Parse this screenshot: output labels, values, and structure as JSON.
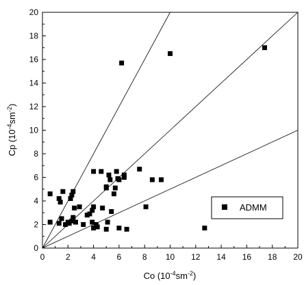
{
  "chart_data": {
    "type": "scatter",
    "xlabel": {
      "main": "Co (10",
      "sup1": "-4",
      "mid": "sm",
      "sup2": "-2",
      "end": ")"
    },
    "ylabel": {
      "main": "Cp (10",
      "sup1": "-4",
      "mid": "sm",
      "sup2": "-2",
      "end": ")"
    },
    "xlim": [
      0,
      20
    ],
    "ylim": [
      0,
      20
    ],
    "xticks": [
      0,
      2,
      4,
      6,
      8,
      10,
      12,
      14,
      16,
      18,
      20
    ],
    "yticks": [
      0,
      2,
      4,
      6,
      8,
      10,
      12,
      14,
      16,
      18,
      20
    ],
    "grid": false,
    "legend_position": "bottom-right",
    "series": [
      {
        "name": "ADMM",
        "marker": "square",
        "color": "#000000",
        "points": [
          [
            0.6,
            4.6
          ],
          [
            0.6,
            2.2
          ],
          [
            1.3,
            4.2
          ],
          [
            1.4,
            3.9
          ],
          [
            1.6,
            4.8
          ],
          [
            1.3,
            2.1
          ],
          [
            1.5,
            2.5
          ],
          [
            1.8,
            2.0
          ],
          [
            2.0,
            2.2
          ],
          [
            2.1,
            2.1
          ],
          [
            2.2,
            4.2
          ],
          [
            2.3,
            4.5
          ],
          [
            2.4,
            4.8
          ],
          [
            2.5,
            3.4
          ],
          [
            2.4,
            2.6
          ],
          [
            2.3,
            2.3
          ],
          [
            2.6,
            2.2
          ],
          [
            2.9,
            3.5
          ],
          [
            3.2,
            2.0
          ],
          [
            3.5,
            2.8
          ],
          [
            3.7,
            2.9
          ],
          [
            3.9,
            2.2
          ],
          [
            3.9,
            3.2
          ],
          [
            4.0,
            3.5
          ],
          [
            4.0,
            6.5
          ],
          [
            4.2,
            2.0
          ],
          [
            4.3,
            1.8
          ],
          [
            4.6,
            6.5
          ],
          [
            4.7,
            3.4
          ],
          [
            5.0,
            5.2
          ],
          [
            5.0,
            5.1
          ],
          [
            5.2,
            6.2
          ],
          [
            5.3,
            5.8
          ],
          [
            5.4,
            3.1
          ],
          [
            5.1,
            2.2
          ],
          [
            5.0,
            1.6
          ],
          [
            5.6,
            4.6
          ],
          [
            5.7,
            5.1
          ],
          [
            5.8,
            6.5
          ],
          [
            5.9,
            5.9
          ],
          [
            6.0,
            5.8
          ],
          [
            6.2,
            15.7
          ],
          [
            6.4,
            6.2
          ],
          [
            6.4,
            6.0
          ],
          [
            6.6,
            1.6
          ],
          [
            6.0,
            1.7
          ],
          [
            7.6,
            6.7
          ],
          [
            8.1,
            3.5
          ],
          [
            8.6,
            5.8
          ],
          [
            9.3,
            5.8
          ],
          [
            10.0,
            16.5
          ],
          [
            12.7,
            1.7
          ],
          [
            17.4,
            17.0
          ],
          [
            4.0,
            1.7
          ]
        ]
      }
    ],
    "reference_lines": [
      {
        "slope": 2
      },
      {
        "slope": 1
      },
      {
        "slope": 0.5
      }
    ]
  }
}
